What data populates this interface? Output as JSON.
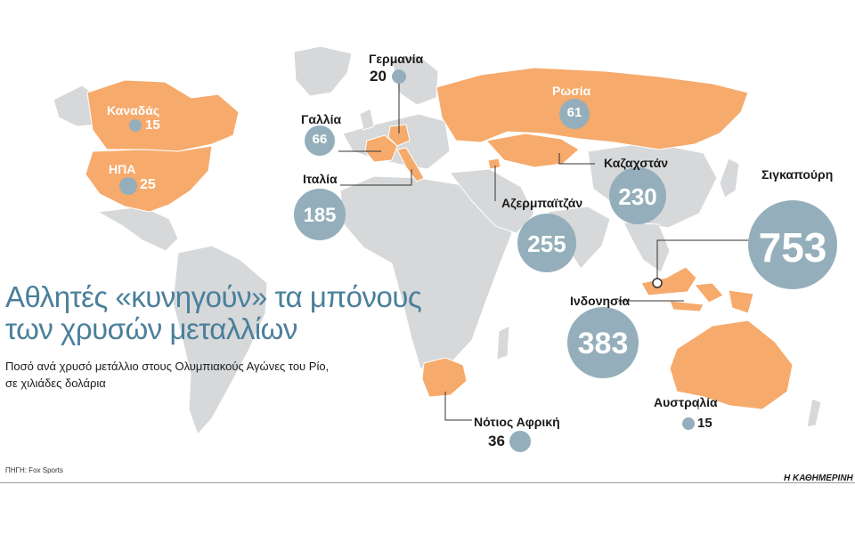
{
  "title": {
    "line1": "Αθλητές «κυνηγούν» τα μπόνους",
    "line2": "των χρυσών μεταλλίων"
  },
  "subtitle": {
    "line1": "Ποσό ανά χρυσό μετάλλιο στους Ολυμπιακούς Αγώνες του Ρίο,",
    "line2": "σε χιλιάδες δολάρια"
  },
  "source": "ΠΗΓΗ: Fox Sports",
  "brand": "Η ΚΑΘΗΜΕΡΙΝΗ",
  "colors": {
    "highlighted_country": "#f6aa6b",
    "other_land": "#d6d8da",
    "bubble": "#94afbb",
    "title": "#4a7f9b"
  },
  "countries": [
    {
      "id": "canada",
      "name": "Καναδάς",
      "value": "15"
    },
    {
      "id": "usa",
      "name": "ΗΠΑ",
      "value": "25"
    },
    {
      "id": "germany",
      "name": "Γερμανία",
      "value": "20"
    },
    {
      "id": "france",
      "name": "Γαλλία",
      "value": "66"
    },
    {
      "id": "italy",
      "name": "Ιταλία",
      "value": "185"
    },
    {
      "id": "russia",
      "name": "Ρωσία",
      "value": "61"
    },
    {
      "id": "kazakhstan",
      "name": "Καζαχστάν",
      "value": "230"
    },
    {
      "id": "azerbaijan",
      "name": "Αζερμπαϊτζάν",
      "value": "255"
    },
    {
      "id": "singapore",
      "name": "Σιγκαπούρη",
      "value": "753"
    },
    {
      "id": "indonesia",
      "name": "Ινδονησία",
      "value": "383"
    },
    {
      "id": "south_africa",
      "name": "Νότιος Αφρική",
      "value": "36"
    },
    {
      "id": "australia",
      "name": "Αυστραλία",
      "value": "15"
    }
  ]
}
